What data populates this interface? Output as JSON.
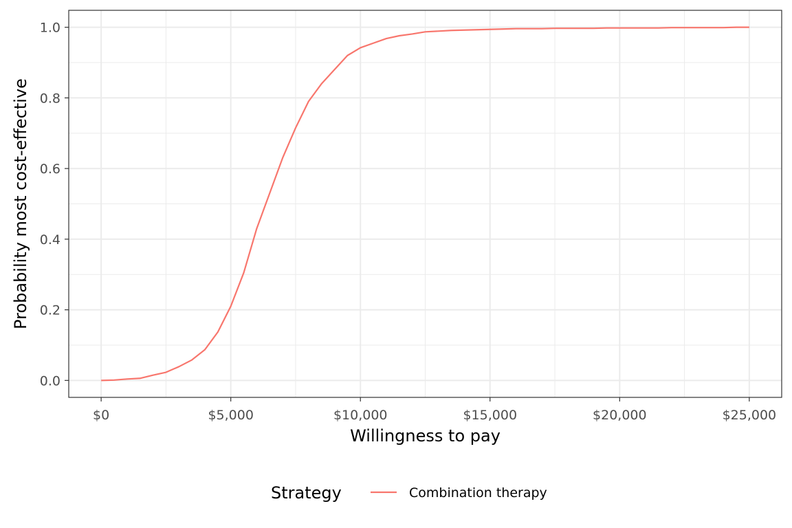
{
  "chart_data": {
    "type": "line",
    "xlabel": "Willingness to pay",
    "ylabel": "Probability most cost-effective",
    "xlim": [
      -1250,
      26250
    ],
    "ylim": [
      -0.048,
      1.048
    ],
    "x_ticks": [
      0,
      5000,
      10000,
      15000,
      20000,
      25000
    ],
    "x_tick_labels": [
      "$0",
      "$5,000",
      "$10,000",
      "$15,000",
      "$20,000",
      "$25,000"
    ],
    "y_ticks": [
      0.0,
      0.2,
      0.4,
      0.6,
      0.8,
      1.0
    ],
    "y_tick_labels": [
      "0.0",
      "0.2",
      "0.4",
      "0.6",
      "0.8",
      "1.0"
    ],
    "grid": true,
    "legend": {
      "title": "Strategy",
      "position": "bottom"
    },
    "series": [
      {
        "name": "Combination therapy",
        "color": "#F8766D",
        "x": [
          0,
          500,
          1000,
          1500,
          2000,
          2500,
          3000,
          3500,
          4000,
          4500,
          5000,
          5500,
          6000,
          6500,
          7000,
          7500,
          8000,
          8500,
          9000,
          9500,
          10000,
          10500,
          11000,
          11500,
          12000,
          12500,
          13000,
          13500,
          14000,
          14500,
          15000,
          15500,
          16000,
          16500,
          17000,
          17500,
          18000,
          18500,
          19000,
          19500,
          20000,
          20500,
          21000,
          21500,
          22000,
          22500,
          23000,
          23500,
          24000,
          24500,
          25000
        ],
        "values": [
          0.0,
          0.001,
          0.004,
          0.006,
          0.015,
          0.023,
          0.039,
          0.058,
          0.087,
          0.137,
          0.21,
          0.305,
          0.43,
          0.53,
          0.63,
          0.715,
          0.79,
          0.84,
          0.88,
          0.92,
          0.942,
          0.955,
          0.968,
          0.976,
          0.981,
          0.987,
          0.989,
          0.991,
          0.992,
          0.993,
          0.994,
          0.995,
          0.996,
          0.996,
          0.996,
          0.997,
          0.997,
          0.997,
          0.997,
          0.998,
          0.998,
          0.998,
          0.998,
          0.998,
          0.999,
          0.999,
          0.999,
          0.999,
          0.999,
          1.0,
          1.0
        ]
      }
    ]
  }
}
